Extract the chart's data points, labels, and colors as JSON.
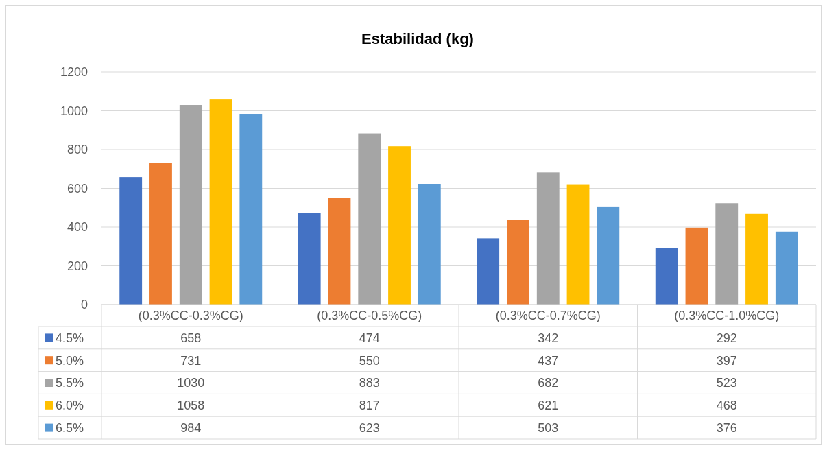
{
  "chart_data": {
    "type": "bar",
    "title": "Estabilidad (kg)",
    "categories": [
      "(0.3%CC-0.3%CG)",
      "(0.3%CC-0.5%CG)",
      "(0.3%CC-0.7%CG)",
      "(0.3%CC-1.0%CG)"
    ],
    "series": [
      {
        "name": "4.5%",
        "color": "#4472c4",
        "values": [
          658,
          474,
          342,
          292
        ]
      },
      {
        "name": "5.0%",
        "color": "#ed7d31",
        "values": [
          731,
          550,
          437,
          397
        ]
      },
      {
        "name": "5.5%",
        "color": "#a5a5a5",
        "values": [
          1030,
          883,
          682,
          523
        ]
      },
      {
        "name": "6.0%",
        "color": "#ffc000",
        "values": [
          1058,
          817,
          621,
          468
        ]
      },
      {
        "name": "6.5%",
        "color": "#5b9bd5",
        "values": [
          984,
          623,
          503,
          376
        ]
      }
    ],
    "ylim": [
      0,
      1200
    ],
    "yticks": [
      0,
      200,
      400,
      600,
      800,
      1000,
      1200
    ],
    "grid": "y",
    "legend": "bottom",
    "data_labels": true
  }
}
